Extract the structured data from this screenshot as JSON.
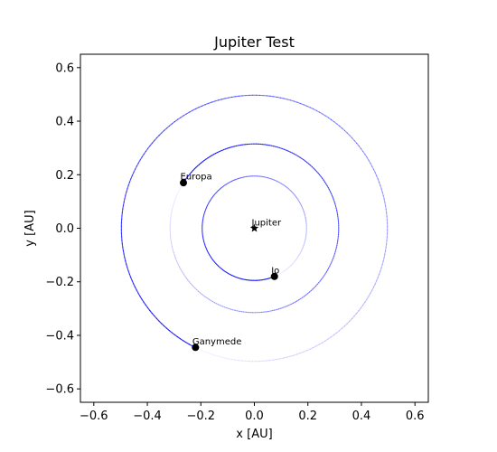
{
  "chart_data": {
    "type": "scatter",
    "title": "Jupiter Test",
    "xlabel": "x [AU]",
    "ylabel": "y [AU]",
    "xlim": [
      -0.65,
      0.65
    ],
    "ylim": [
      -0.65,
      0.65
    ],
    "xticks": [
      -0.6,
      -0.4,
      -0.2,
      0.0,
      0.2,
      0.4,
      0.6
    ],
    "yticks": [
      -0.6,
      -0.4,
      -0.2,
      0.0,
      0.2,
      0.4,
      0.6
    ],
    "xtick_labels": [
      "−0.6",
      "−0.4",
      "−0.2",
      "0.0",
      "0.2",
      "0.4",
      "0.6"
    ],
    "ytick_labels": [
      "−0.6",
      "−0.4",
      "−0.2",
      "0.0",
      "0.2",
      "0.4",
      "0.6"
    ],
    "grid": false,
    "central_body": {
      "label": "Jupiter",
      "x": 0.0,
      "y": 0.0,
      "marker": "star"
    },
    "bodies": [
      {
        "label": "Io",
        "x": 0.075,
        "y": -0.18,
        "orbit_radius": 0.195
      },
      {
        "label": "Europa",
        "x": -0.265,
        "y": 0.17,
        "orbit_radius": 0.315
      },
      {
        "label": "Ganymede",
        "x": -0.22,
        "y": -0.445,
        "orbit_radius": 0.497
      }
    ],
    "trail_color": "#0000ff",
    "marker_color": "#000000"
  }
}
